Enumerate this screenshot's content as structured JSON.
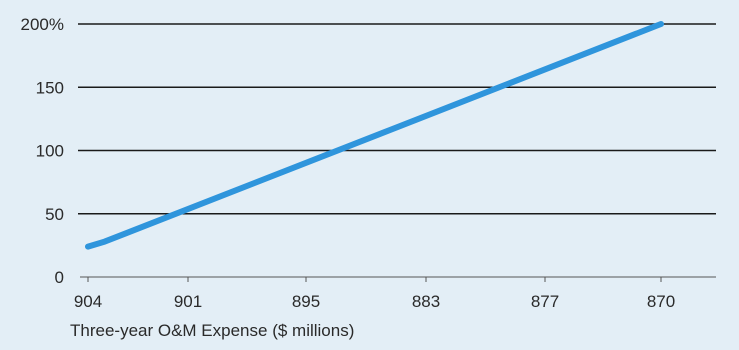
{
  "chart_data": {
    "type": "line",
    "title": "",
    "xlabel": "Three-year O&M Expense ($ millions)",
    "ylabel": "",
    "categories": [
      "904",
      "901",
      "895",
      "883",
      "877",
      "870"
    ],
    "x_is_categorical": true,
    "y_ticks": [
      "0",
      "50",
      "100",
      "150",
      "200%"
    ],
    "ylim": [
      0,
      200
    ],
    "grid": true,
    "legend": "none",
    "series": [
      {
        "color": "#2f95dc",
        "points": [
          {
            "x": 904,
            "y": 24
          },
          {
            "x": 903.5,
            "y": 28
          },
          {
            "x": 870,
            "y": 200
          }
        ],
        "values_at_categories": [
          24,
          59,
          97,
          134,
          170,
          200
        ]
      }
    ],
    "colors": {
      "background": "#e3eef6",
      "gridline": "#1a1a1a",
      "line": "#2f95dc",
      "text": "#2a2a2a"
    }
  }
}
